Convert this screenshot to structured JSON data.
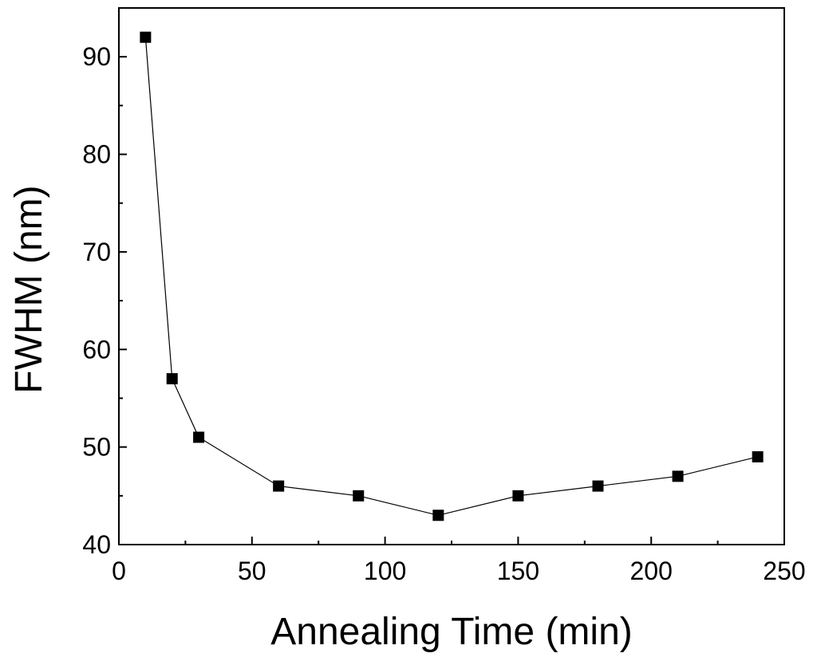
{
  "chart_data": {
    "type": "line",
    "title": "",
    "xlabel": "Annealing Time (min)",
    "ylabel": "FWHM (nm)",
    "xlim": [
      0,
      250
    ],
    "ylim": [
      40,
      95
    ],
    "xticks": [
      0,
      50,
      100,
      150,
      200,
      250
    ],
    "yticks": [
      40,
      50,
      60,
      70,
      80,
      90
    ],
    "xtick_labels": [
      "0",
      "50",
      "100",
      "150",
      "200",
      "250"
    ],
    "ytick_labels": [
      "40",
      "50",
      "60",
      "70",
      "80",
      "90"
    ],
    "x_minor_step": 25,
    "y_minor_step": 5,
    "grid": false,
    "marker": "square",
    "series": [
      {
        "name": "FWHM",
        "x": [
          10,
          20,
          30,
          60,
          90,
          120,
          150,
          180,
          210,
          240
        ],
        "y": [
          92,
          57,
          51,
          46,
          45,
          43,
          45,
          46,
          47,
          49
        ]
      }
    ],
    "colors": {
      "line": "#000000",
      "marker": "#000000",
      "axes": "#000000",
      "background": "#ffffff"
    }
  }
}
